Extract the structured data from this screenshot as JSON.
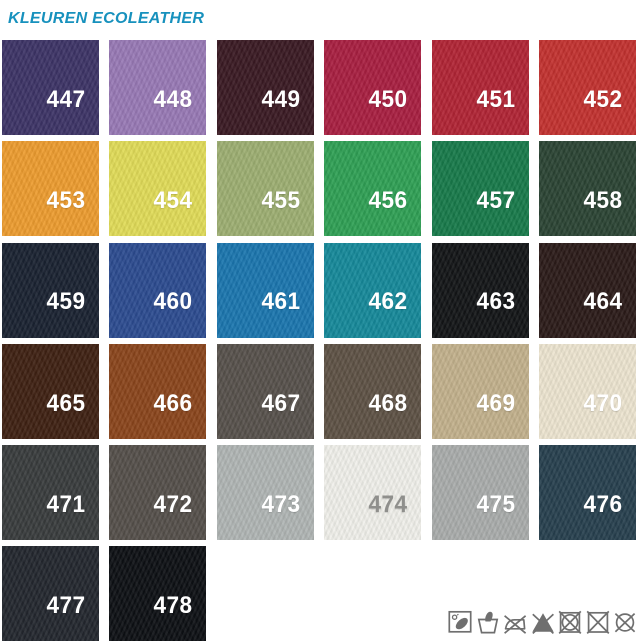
{
  "page": {
    "title": "KLEUREN ECOLEATHER",
    "title_color": "#1791bd",
    "background": "#ffffff"
  },
  "swatches": [
    {
      "number": "447",
      "color": "#3d3466",
      "text_color": "#ffffff"
    },
    {
      "number": "448",
      "color": "#9879b5",
      "text_color": "#ffffff"
    },
    {
      "number": "449",
      "color": "#3a1a23",
      "text_color": "#ffffff"
    },
    {
      "number": "450",
      "color": "#a81f41",
      "text_color": "#ffffff"
    },
    {
      "number": "451",
      "color": "#b12435",
      "text_color": "#ffffff"
    },
    {
      "number": "452",
      "color": "#c23230",
      "text_color": "#ffffff"
    },
    {
      "number": "453",
      "color": "#ec9c2f",
      "text_color": "#ffffff"
    },
    {
      "number": "454",
      "color": "#e0db58",
      "text_color": "#ffffff"
    },
    {
      "number": "455",
      "color": "#9dae72",
      "text_color": "#ffffff"
    },
    {
      "number": "456",
      "color": "#2fa055",
      "text_color": "#ffffff"
    },
    {
      "number": "457",
      "color": "#187a4a",
      "text_color": "#ffffff"
    },
    {
      "number": "458",
      "color": "#2b4434",
      "text_color": "#ffffff"
    },
    {
      "number": "459",
      "color": "#1a2231",
      "text_color": "#ffffff"
    },
    {
      "number": "460",
      "color": "#2c4b90",
      "text_color": "#ffffff"
    },
    {
      "number": "461",
      "color": "#1b76ae",
      "text_color": "#ffffff"
    },
    {
      "number": "462",
      "color": "#16899a",
      "text_color": "#ffffff"
    },
    {
      "number": "463",
      "color": "#131517",
      "text_color": "#ffffff"
    },
    {
      "number": "464",
      "color": "#2b1b19",
      "text_color": "#ffffff"
    },
    {
      "number": "465",
      "color": "#3f2113",
      "text_color": "#ffffff"
    },
    {
      "number": "466",
      "color": "#8a451c",
      "text_color": "#ffffff"
    },
    {
      "number": "467",
      "color": "#57514b",
      "text_color": "#ffffff"
    },
    {
      "number": "468",
      "color": "#5e5245",
      "text_color": "#ffffff"
    },
    {
      "number": "469",
      "color": "#c2b18c",
      "text_color": "#ffffff"
    },
    {
      "number": "470",
      "color": "#ece4d0",
      "text_color": "#ffffff"
    },
    {
      "number": "471",
      "color": "#393c3d",
      "text_color": "#ffffff"
    },
    {
      "number": "472",
      "color": "#554f4a",
      "text_color": "#ffffff"
    },
    {
      "number": "473",
      "color": "#b0b5b4",
      "text_color": "#ffffff"
    },
    {
      "number": "474",
      "color": "#f0efea",
      "text_color": "#8f8f8c"
    },
    {
      "number": "475",
      "color": "#a9acab",
      "text_color": "#ffffff"
    },
    {
      "number": "476",
      "color": "#27404e",
      "text_color": "#ffffff"
    },
    {
      "number": "477",
      "color": "#23272e",
      "text_color": "#ffffff"
    },
    {
      "number": "478",
      "color": "#0d1014",
      "text_color": "#ffffff"
    }
  ],
  "care_icons": {
    "color": "#6f6f6f",
    "items": [
      {
        "name": "wipe-clean-icon"
      },
      {
        "name": "hand-wash-icon"
      },
      {
        "name": "do-not-iron-icon"
      },
      {
        "name": "do-not-bleach-icon"
      },
      {
        "name": "do-not-tumble-dry-icon"
      },
      {
        "name": "do-not-dry-icon"
      },
      {
        "name": "do-not-dry-clean-icon"
      }
    ]
  }
}
